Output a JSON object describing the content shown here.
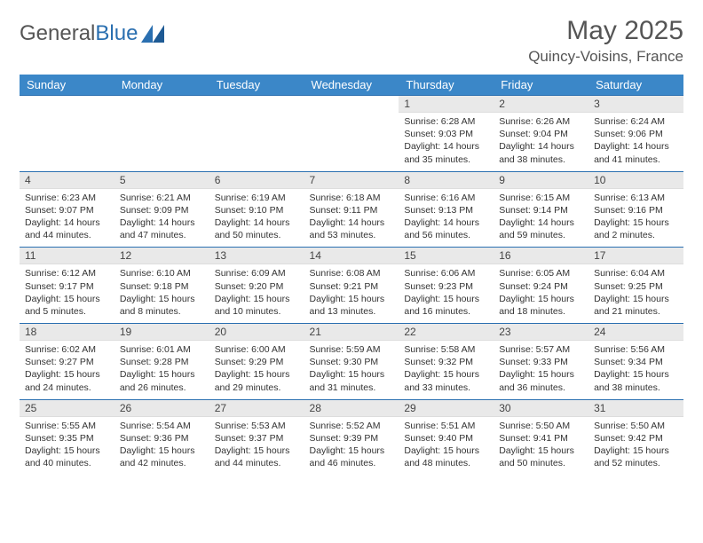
{
  "logo": {
    "text1": "General",
    "text2": "Blue"
  },
  "title": "May 2025",
  "location": "Quincy-Voisins, France",
  "colors": {
    "header_bg": "#3b87c8",
    "header_text": "#ffffff",
    "daynum_bg": "#e9e9e9",
    "border": "#2a6fb0",
    "text": "#333333",
    "title_text": "#555555"
  },
  "day_headers": [
    "Sunday",
    "Monday",
    "Tuesday",
    "Wednesday",
    "Thursday",
    "Friday",
    "Saturday"
  ],
  "weeks": [
    [
      null,
      null,
      null,
      null,
      {
        "n": "1",
        "sr": "6:28 AM",
        "ss": "9:03 PM",
        "dl": "14 hours and 35 minutes."
      },
      {
        "n": "2",
        "sr": "6:26 AM",
        "ss": "9:04 PM",
        "dl": "14 hours and 38 minutes."
      },
      {
        "n": "3",
        "sr": "6:24 AM",
        "ss": "9:06 PM",
        "dl": "14 hours and 41 minutes."
      }
    ],
    [
      {
        "n": "4",
        "sr": "6:23 AM",
        "ss": "9:07 PM",
        "dl": "14 hours and 44 minutes."
      },
      {
        "n": "5",
        "sr": "6:21 AM",
        "ss": "9:09 PM",
        "dl": "14 hours and 47 minutes."
      },
      {
        "n": "6",
        "sr": "6:19 AM",
        "ss": "9:10 PM",
        "dl": "14 hours and 50 minutes."
      },
      {
        "n": "7",
        "sr": "6:18 AM",
        "ss": "9:11 PM",
        "dl": "14 hours and 53 minutes."
      },
      {
        "n": "8",
        "sr": "6:16 AM",
        "ss": "9:13 PM",
        "dl": "14 hours and 56 minutes."
      },
      {
        "n": "9",
        "sr": "6:15 AM",
        "ss": "9:14 PM",
        "dl": "14 hours and 59 minutes."
      },
      {
        "n": "10",
        "sr": "6:13 AM",
        "ss": "9:16 PM",
        "dl": "15 hours and 2 minutes."
      }
    ],
    [
      {
        "n": "11",
        "sr": "6:12 AM",
        "ss": "9:17 PM",
        "dl": "15 hours and 5 minutes."
      },
      {
        "n": "12",
        "sr": "6:10 AM",
        "ss": "9:18 PM",
        "dl": "15 hours and 8 minutes."
      },
      {
        "n": "13",
        "sr": "6:09 AM",
        "ss": "9:20 PM",
        "dl": "15 hours and 10 minutes."
      },
      {
        "n": "14",
        "sr": "6:08 AM",
        "ss": "9:21 PM",
        "dl": "15 hours and 13 minutes."
      },
      {
        "n": "15",
        "sr": "6:06 AM",
        "ss": "9:23 PM",
        "dl": "15 hours and 16 minutes."
      },
      {
        "n": "16",
        "sr": "6:05 AM",
        "ss": "9:24 PM",
        "dl": "15 hours and 18 minutes."
      },
      {
        "n": "17",
        "sr": "6:04 AM",
        "ss": "9:25 PM",
        "dl": "15 hours and 21 minutes."
      }
    ],
    [
      {
        "n": "18",
        "sr": "6:02 AM",
        "ss": "9:27 PM",
        "dl": "15 hours and 24 minutes."
      },
      {
        "n": "19",
        "sr": "6:01 AM",
        "ss": "9:28 PM",
        "dl": "15 hours and 26 minutes."
      },
      {
        "n": "20",
        "sr": "6:00 AM",
        "ss": "9:29 PM",
        "dl": "15 hours and 29 minutes."
      },
      {
        "n": "21",
        "sr": "5:59 AM",
        "ss": "9:30 PM",
        "dl": "15 hours and 31 minutes."
      },
      {
        "n": "22",
        "sr": "5:58 AM",
        "ss": "9:32 PM",
        "dl": "15 hours and 33 minutes."
      },
      {
        "n": "23",
        "sr": "5:57 AM",
        "ss": "9:33 PM",
        "dl": "15 hours and 36 minutes."
      },
      {
        "n": "24",
        "sr": "5:56 AM",
        "ss": "9:34 PM",
        "dl": "15 hours and 38 minutes."
      }
    ],
    [
      {
        "n": "25",
        "sr": "5:55 AM",
        "ss": "9:35 PM",
        "dl": "15 hours and 40 minutes."
      },
      {
        "n": "26",
        "sr": "5:54 AM",
        "ss": "9:36 PM",
        "dl": "15 hours and 42 minutes."
      },
      {
        "n": "27",
        "sr": "5:53 AM",
        "ss": "9:37 PM",
        "dl": "15 hours and 44 minutes."
      },
      {
        "n": "28",
        "sr": "5:52 AM",
        "ss": "9:39 PM",
        "dl": "15 hours and 46 minutes."
      },
      {
        "n": "29",
        "sr": "5:51 AM",
        "ss": "9:40 PM",
        "dl": "15 hours and 48 minutes."
      },
      {
        "n": "30",
        "sr": "5:50 AM",
        "ss": "9:41 PM",
        "dl": "15 hours and 50 minutes."
      },
      {
        "n": "31",
        "sr": "5:50 AM",
        "ss": "9:42 PM",
        "dl": "15 hours and 52 minutes."
      }
    ]
  ],
  "labels": {
    "sunrise": "Sunrise: ",
    "sunset": "Sunset: ",
    "daylight": "Daylight: "
  }
}
